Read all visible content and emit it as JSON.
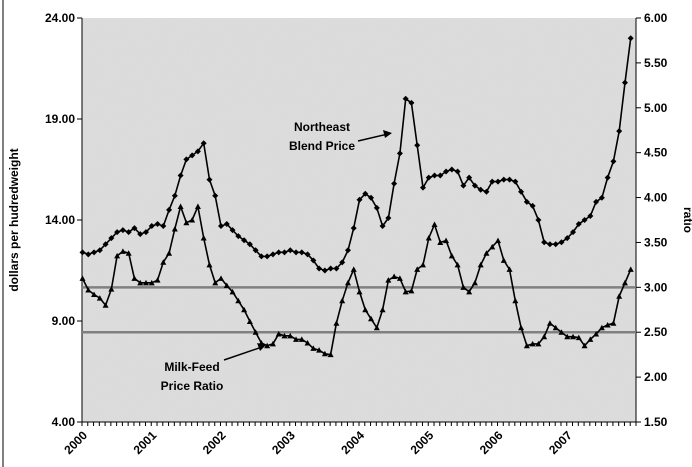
{
  "chart_data": {
    "type": "line",
    "y_label": "dollars per hudredweight",
    "y2_label": "ratio",
    "categories": [
      "2000",
      null,
      null,
      null,
      null,
      null,
      null,
      null,
      null,
      null,
      null,
      null,
      "2001",
      null,
      null,
      null,
      null,
      null,
      null,
      null,
      null,
      null,
      null,
      null,
      "2002",
      null,
      null,
      null,
      null,
      null,
      null,
      null,
      null,
      null,
      null,
      null,
      "2003",
      null,
      null,
      null,
      null,
      null,
      null,
      null,
      null,
      null,
      null,
      null,
      "2004",
      null,
      null,
      null,
      null,
      null,
      null,
      null,
      null,
      null,
      null,
      null,
      "2005",
      null,
      null,
      null,
      null,
      null,
      null,
      null,
      null,
      null,
      null,
      null,
      "2006",
      null,
      null,
      null,
      null,
      null,
      null,
      null,
      null,
      null,
      null,
      null,
      "2007",
      null,
      null,
      null,
      null,
      null,
      null,
      null,
      null,
      null,
      null,
      null
    ],
    "series": [
      {
        "name": "Northeast Blend Price",
        "color": "#000000",
        "marker": "diamond",
        "values": [
          12.4,
          12.3,
          12.4,
          12.5,
          12.8,
          13.1,
          13.4,
          13.5,
          13.4,
          13.6,
          13.3,
          13.4,
          13.7,
          13.8,
          13.7,
          14.5,
          15.2,
          16.2,
          17.0,
          17.2,
          17.4,
          17.8,
          16.0,
          15.2,
          13.7,
          13.8,
          13.5,
          13.2,
          13.0,
          12.8,
          12.5,
          12.2,
          12.2,
          12.3,
          12.4,
          12.4,
          12.5,
          12.4,
          12.4,
          12.3,
          12.0,
          11.6,
          11.5,
          11.6,
          11.6,
          11.9,
          12.5,
          13.6,
          15.0,
          15.3,
          15.1,
          14.6,
          13.7,
          14.1,
          15.8,
          17.3,
          20.0,
          19.8,
          17.7,
          15.6,
          16.1,
          16.2,
          16.2,
          16.4,
          16.5,
          16.4,
          15.7,
          16.1,
          15.7,
          15.5,
          15.4,
          15.9,
          15.9,
          16.0,
          16.0,
          15.9,
          15.4,
          14.9,
          14.7,
          14.0,
          12.9,
          12.8,
          12.8,
          12.9,
          13.1,
          13.4,
          13.8,
          14.0,
          14.2,
          14.9,
          15.1,
          16.1,
          16.9,
          18.4,
          20.8,
          23.0
        ]
      },
      {
        "name": "Milk-Feed Price Ratio",
        "color": "#000000",
        "marker": "triangle",
        "axis": "y2",
        "values": [
          3.1,
          2.97,
          2.92,
          2.88,
          2.8,
          2.98,
          3.35,
          3.4,
          3.38,
          3.1,
          3.05,
          3.05,
          3.05,
          3.08,
          3.28,
          3.38,
          3.65,
          3.9,
          3.72,
          3.75,
          3.9,
          3.55,
          3.25,
          3.05,
          3.1,
          3.02,
          2.95,
          2.85,
          2.75,
          2.62,
          2.5,
          2.38,
          2.35,
          2.37,
          2.48,
          2.46,
          2.46,
          2.42,
          2.42,
          2.38,
          2.32,
          2.3,
          2.26,
          2.25,
          2.6,
          2.85,
          3.05,
          3.2,
          2.95,
          2.75,
          2.65,
          2.55,
          2.75,
          3.08,
          3.12,
          3.1,
          2.95,
          2.96,
          3.2,
          3.25,
          3.55,
          3.7,
          3.5,
          3.52,
          3.35,
          3.25,
          3.0,
          2.95,
          3.05,
          3.25,
          3.38,
          3.45,
          3.52,
          3.3,
          3.2,
          2.85,
          2.55,
          2.35,
          2.37,
          2.37,
          2.45,
          2.6,
          2.55,
          2.5,
          2.45,
          2.45,
          2.44,
          2.35,
          2.42,
          2.48,
          2.55,
          2.58,
          2.6,
          2.9,
          3.05,
          3.2
        ]
      }
    ],
    "reference_lines": {
      "axis": "y2",
      "color": "#808080",
      "values": [
        3.0,
        2.5
      ]
    },
    "annotations": [
      {
        "lines": [
          "Northeast",
          "Blend Price"
        ]
      },
      {
        "lines": [
          "Milk-Feed",
          "Price Ratio"
        ]
      }
    ],
    "ylim": [
      4,
      24
    ],
    "yticks": [
      {
        "value": 4,
        "label": "4.00"
      },
      {
        "value": 9,
        "label": "9.00"
      },
      {
        "value": 14,
        "label": "14.00"
      },
      {
        "value": 19,
        "label": "19.00"
      },
      {
        "value": 24,
        "label": "24.00"
      }
    ],
    "y2lim": [
      1.5,
      6
    ],
    "y2ticks": [
      {
        "value": 1.5,
        "label": "1.50"
      },
      {
        "value": 2,
        "label": "2.00"
      },
      {
        "value": 2.5,
        "label": "2.50"
      },
      {
        "value": 3,
        "label": "3.00"
      },
      {
        "value": 3.5,
        "label": "3.50"
      },
      {
        "value": 4,
        "label": "4.00"
      },
      {
        "value": 4.5,
        "label": "4.50"
      },
      {
        "value": 5,
        "label": "5.00"
      },
      {
        "value": 5.5,
        "label": "5.50"
      },
      {
        "value": 6,
        "label": "6.00"
      }
    ],
    "background": "#d9d9d9"
  }
}
